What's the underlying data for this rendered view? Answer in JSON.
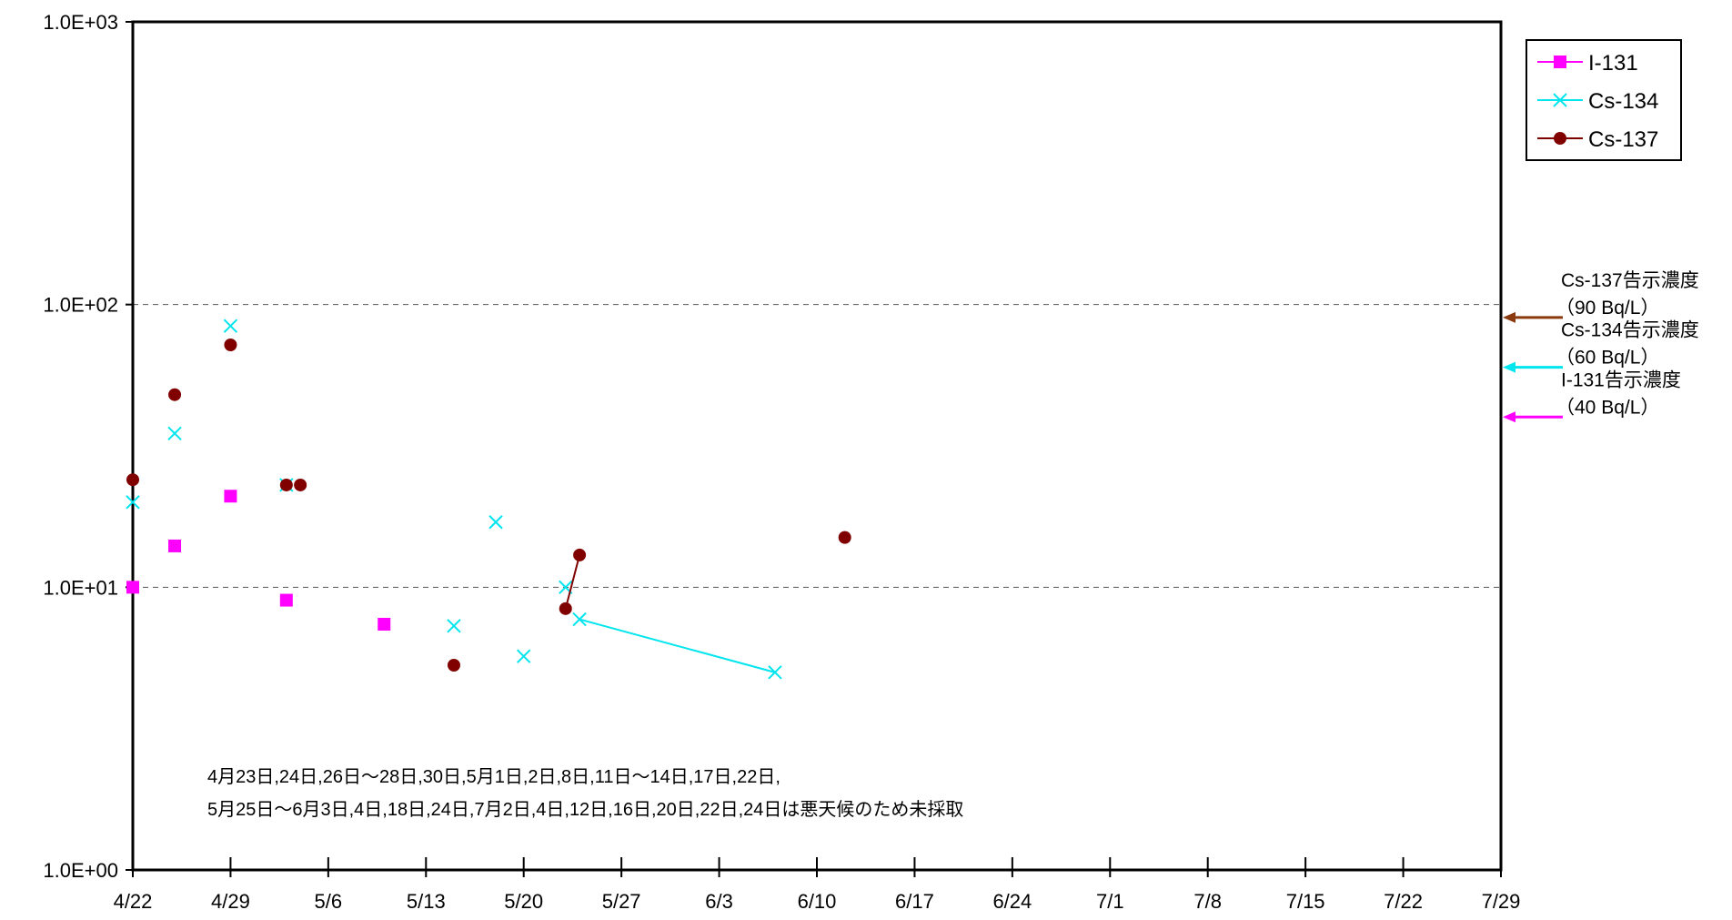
{
  "chart_data": {
    "type": "scatter",
    "title": "",
    "xlabel": "",
    "ylabel": "",
    "y_scale": "log",
    "ylim": [
      1,
      1000
    ],
    "y_ticks": [
      "1.0E+00",
      "1.0E+01",
      "1.0E+02",
      "1.0E+03"
    ],
    "y_tick_values": [
      1,
      10,
      100,
      1000
    ],
    "xlim": [
      "2011-04-22",
      "2011-07-29"
    ],
    "x_ticks": [
      "4/22",
      "4/29",
      "5/6",
      "5/13",
      "5/20",
      "5/27",
      "6/3",
      "6/10",
      "6/17",
      "6/24",
      "7/1",
      "7/8",
      "7/15",
      "7/22",
      "7/29"
    ],
    "x_tick_dates": [
      "2011-04-22",
      "2011-04-29",
      "2011-05-06",
      "2011-05-13",
      "2011-05-20",
      "2011-05-27",
      "2011-06-03",
      "2011-06-10",
      "2011-06-17",
      "2011-06-24",
      "2011-07-01",
      "2011-07-08",
      "2011-07-15",
      "2011-07-22",
      "2011-07-29"
    ],
    "grid": "dashed horizontal at 1.0E+01 and 1.0E+02",
    "legend_position": "top-right",
    "series": [
      {
        "name": "I-131",
        "color": "#ff00ff",
        "marker": "square",
        "points": [
          {
            "x": "2011-04-22",
            "y": 10
          },
          {
            "x": "2011-04-25",
            "y": 14
          },
          {
            "x": "2011-04-29",
            "y": 21
          },
          {
            "x": "2011-05-03",
            "y": 9
          },
          {
            "x": "2011-05-10",
            "y": 7.4
          }
        ],
        "connect": []
      },
      {
        "name": "Cs-134",
        "color": "#00e5ee",
        "marker": "x",
        "points": [
          {
            "x": "2011-04-22",
            "y": 20
          },
          {
            "x": "2011-04-25",
            "y": 35
          },
          {
            "x": "2011-04-29",
            "y": 84
          },
          {
            "x": "2011-05-03",
            "y": 23
          },
          {
            "x": "2011-05-15",
            "y": 7.3
          },
          {
            "x": "2011-05-18",
            "y": 17
          },
          {
            "x": "2011-05-20",
            "y": 5.7
          },
          {
            "x": "2011-05-23",
            "y": 10
          },
          {
            "x": "2011-05-24",
            "y": 7.7
          },
          {
            "x": "2011-06-07",
            "y": 5
          }
        ],
        "connect": [
          [
            8,
            9
          ]
        ]
      },
      {
        "name": "Cs-137",
        "color": "#800000",
        "marker": "circle",
        "points": [
          {
            "x": "2011-04-22",
            "y": 24
          },
          {
            "x": "2011-04-25",
            "y": 48
          },
          {
            "x": "2011-04-29",
            "y": 72
          },
          {
            "x": "2011-05-03",
            "y": 23
          },
          {
            "x": "2011-05-04",
            "y": 23
          },
          {
            "x": "2011-05-15",
            "y": 5.3
          },
          {
            "x": "2011-05-23",
            "y": 8.4
          },
          {
            "x": "2011-05-24",
            "y": 13
          },
          {
            "x": "2011-06-12",
            "y": 15
          }
        ],
        "connect": [
          [
            6,
            7
          ]
        ]
      }
    ],
    "reference_lines": [
      {
        "series": "Cs-137",
        "value": 90,
        "line1": "Cs-137告示濃度",
        "line2": "（90  Bq/L）",
        "color": "#8b3a0f"
      },
      {
        "series": "Cs-134",
        "value": 60,
        "line1": "Cs-134告示濃度",
        "line2": "（60  Bq/L）",
        "color": "#00e5ee"
      },
      {
        "series": "I-131",
        "value": 40,
        "line1": "I-131告示濃度",
        "line2": "（40  Bq/L）",
        "color": "#ff00ff"
      }
    ],
    "annotations": [
      "4月23日,24日,26日～28日,30日,5月1日,2日,8日,11日～14日,17日,22日,",
      "5月25日～6月3日,4日,18日,24日,7月2日,4日,12日,16日,20日,22日,24日は悪天候のため未採取"
    ]
  }
}
